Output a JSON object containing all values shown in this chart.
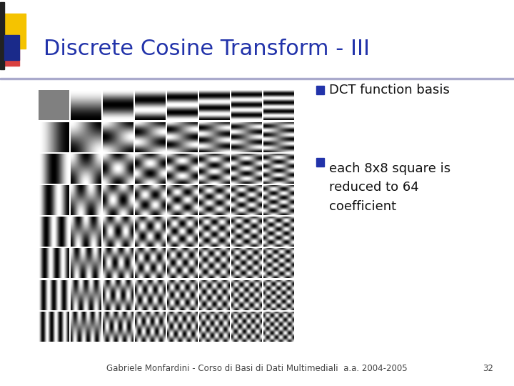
{
  "title": "Discrete Cosine Transform - III",
  "bullet1": "DCT function basis",
  "bullet2": "each 8x8 square is\nreduced to 64\ncoefficient",
  "footer": "Gabriele Monfardini - Corso di Basi di Dati Multimediali  a.a. 2004-2005",
  "page_number": "32",
  "title_color": "#2233AA",
  "bullet_color": "#2233AA",
  "footer_color": "#444444",
  "bg_color": "#FFFFFF",
  "header_bar_color": "#1A2A8A",
  "dct_size": 8
}
